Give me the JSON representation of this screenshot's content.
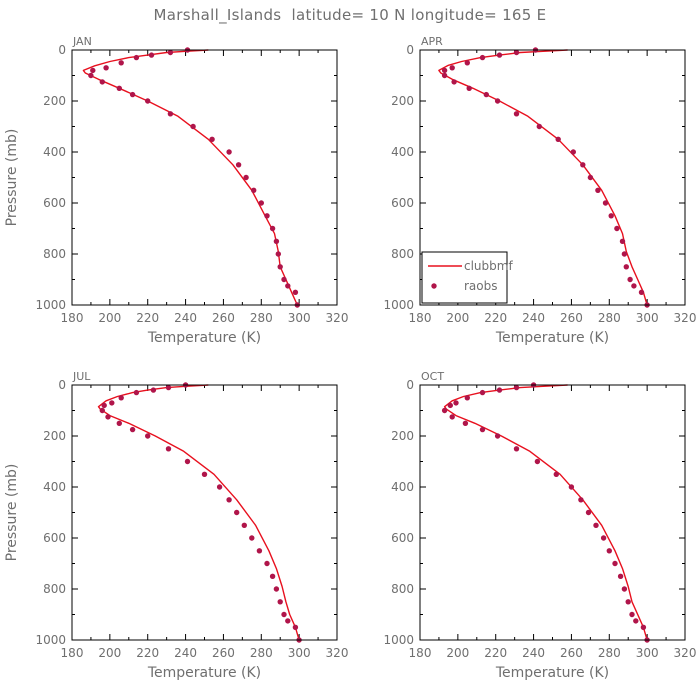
{
  "title": "Marshall_Islands  latitude= 10 N longitude= 165 E",
  "colors": {
    "model": "#e8101e",
    "obs": "#b0154a",
    "text": "#6f6f6f",
    "frame": "#000000"
  },
  "legend": {
    "model_label": "clubbmf",
    "obs_label": "raobs",
    "placement": "lower-left of APR panel"
  },
  "chart_data": [
    {
      "type": "line",
      "panel": "JAN",
      "xlabel": "Temperature (K)",
      "ylabel": "Pressure (mb)",
      "xlim": [
        180,
        320
      ],
      "ylim": [
        1000,
        0
      ],
      "xticks": [
        180,
        200,
        220,
        240,
        260,
        280,
        300,
        320
      ],
      "yticks": [
        0,
        200,
        400,
        600,
        800,
        1000
      ],
      "series": [
        {
          "name": "clubbmf",
          "kind": "line",
          "x": [
            252,
            240,
            230,
            220,
            210,
            200,
            192,
            186,
            187,
            194,
            205,
            220,
            236,
            252,
            265,
            275,
            282,
            287,
            289,
            290,
            293,
            296,
            299
          ],
          "y": [
            0,
            5,
            10,
            20,
            30,
            45,
            62,
            80,
            90,
            115,
            150,
            200,
            260,
            350,
            450,
            550,
            650,
            720,
            790,
            850,
            900,
            950,
            1000
          ]
        },
        {
          "name": "raobs",
          "kind": "scatter",
          "x": [
            241,
            232,
            222,
            214,
            206,
            198,
            191,
            190,
            196,
            205,
            212,
            220,
            232,
            244,
            254,
            263,
            268,
            272,
            276,
            280,
            283,
            286,
            288,
            289,
            290,
            292,
            294,
            298,
            299
          ],
          "y": [
            0,
            10,
            20,
            30,
            50,
            70,
            80,
            100,
            125,
            150,
            175,
            200,
            250,
            300,
            350,
            400,
            450,
            500,
            550,
            600,
            650,
            700,
            750,
            800,
            850,
            900,
            925,
            950,
            1000
          ]
        }
      ]
    },
    {
      "type": "line",
      "panel": "APR",
      "xlabel": "Temperature (K)",
      "ylabel": "",
      "xlim": [
        180,
        320
      ],
      "ylim": [
        1000,
        0
      ],
      "xticks": [
        180,
        200,
        220,
        240,
        260,
        280,
        300,
        320
      ],
      "yticks": [
        0,
        200,
        400,
        600,
        800,
        1000
      ],
      "series": [
        {
          "name": "clubbmf",
          "kind": "line",
          "x": [
            258,
            245,
            233,
            222,
            212,
            202,
            195,
            190,
            191,
            197,
            208,
            222,
            237,
            253,
            266,
            276,
            283,
            287,
            289,
            292,
            295,
            298,
            300
          ],
          "y": [
            0,
            5,
            10,
            20,
            30,
            45,
            60,
            80,
            90,
            115,
            150,
            200,
            260,
            350,
            450,
            550,
            650,
            720,
            790,
            850,
            900,
            950,
            1000
          ]
        },
        {
          "name": "raobs",
          "kind": "scatter",
          "x": [
            241,
            231,
            222,
            213,
            205,
            197,
            193,
            193,
            198,
            206,
            215,
            221,
            231,
            243,
            253,
            261,
            266,
            270,
            274,
            278,
            281,
            284,
            287,
            288,
            289,
            291,
            293,
            297,
            300
          ],
          "y": [
            0,
            10,
            20,
            30,
            50,
            70,
            80,
            100,
            125,
            150,
            175,
            200,
            250,
            300,
            350,
            400,
            450,
            500,
            550,
            600,
            650,
            700,
            750,
            800,
            850,
            900,
            925,
            950,
            1000
          ]
        }
      ]
    },
    {
      "type": "line",
      "panel": "JUL",
      "xlabel": "Temperature (K)",
      "ylabel": "Pressure (mb)",
      "xlim": [
        180,
        320
      ],
      "ylim": [
        1000,
        0
      ],
      "xticks": [
        180,
        200,
        220,
        240,
        260,
        280,
        300,
        320
      ],
      "yticks": [
        0,
        200,
        400,
        600,
        800,
        1000
      ],
      "series": [
        {
          "name": "clubbmf",
          "kind": "line",
          "x": [
            252,
            240,
            230,
            220,
            212,
            204,
            198,
            194,
            195,
            200,
            210,
            224,
            239,
            255,
            267,
            277,
            284,
            288,
            291,
            293,
            295,
            298,
            300
          ],
          "y": [
            0,
            5,
            10,
            20,
            30,
            45,
            62,
            85,
            95,
            120,
            150,
            200,
            260,
            350,
            450,
            550,
            650,
            720,
            790,
            850,
            900,
            950,
            1000
          ]
        },
        {
          "name": "raobs",
          "kind": "scatter",
          "x": [
            240,
            231,
            223,
            214,
            206,
            201,
            197,
            196,
            199,
            205,
            212,
            220,
            231,
            241,
            250,
            258,
            263,
            267,
            271,
            275,
            279,
            283,
            286,
            288,
            290,
            292,
            294,
            298,
            300
          ],
          "y": [
            0,
            10,
            20,
            30,
            50,
            70,
            80,
            100,
            125,
            150,
            175,
            200,
            250,
            300,
            350,
            400,
            450,
            500,
            550,
            600,
            650,
            700,
            750,
            800,
            850,
            900,
            925,
            950,
            1000
          ]
        }
      ]
    },
    {
      "type": "line",
      "panel": "OCT",
      "xlabel": "Temperature (K)",
      "ylabel": "",
      "xlim": [
        180,
        320
      ],
      "ylim": [
        1000,
        0
      ],
      "xticks": [
        180,
        200,
        220,
        240,
        260,
        280,
        300,
        320
      ],
      "yticks": [
        0,
        200,
        400,
        600,
        800,
        1000
      ],
      "series": [
        {
          "name": "clubbmf",
          "kind": "line",
          "x": [
            258,
            245,
            233,
            222,
            212,
            203,
            197,
            193,
            194,
            199,
            209,
            223,
            238,
            254,
            266,
            276,
            283,
            287,
            290,
            292,
            295,
            298,
            300
          ],
          "y": [
            0,
            5,
            10,
            20,
            30,
            45,
            62,
            85,
            95,
            120,
            150,
            200,
            260,
            350,
            450,
            550,
            650,
            720,
            790,
            850,
            900,
            950,
            1000
          ]
        },
        {
          "name": "raobs",
          "kind": "scatter",
          "x": [
            240,
            231,
            222,
            213,
            205,
            199,
            196,
            193,
            197,
            204,
            213,
            221,
            231,
            242,
            252,
            260,
            265,
            269,
            273,
            277,
            280,
            283,
            286,
            288,
            290,
            292,
            294,
            298,
            300
          ],
          "y": [
            0,
            10,
            20,
            30,
            50,
            70,
            80,
            100,
            125,
            150,
            175,
            200,
            250,
            300,
            350,
            400,
            450,
            500,
            550,
            600,
            650,
            700,
            750,
            800,
            850,
            900,
            925,
            950,
            1000
          ]
        }
      ]
    }
  ]
}
